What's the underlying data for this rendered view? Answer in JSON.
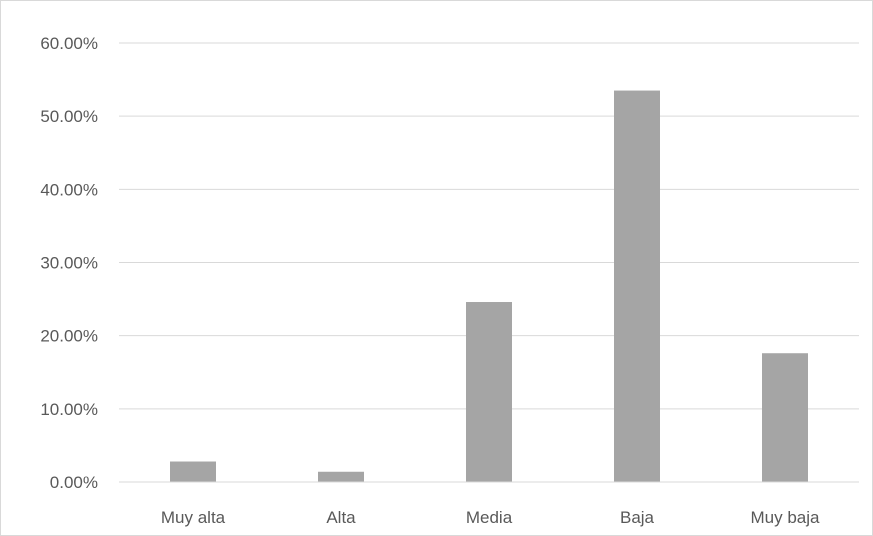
{
  "chart_data": {
    "type": "bar",
    "title": "",
    "xlabel": "",
    "ylabel": "",
    "categories": [
      "Muy alta",
      "Alta",
      "Media",
      "Baja",
      "Muy baja"
    ],
    "values": [
      2.8,
      1.4,
      24.6,
      53.5,
      17.6
    ],
    "value_unit": "%",
    "ylim": [
      0,
      60
    ],
    "yticks": [
      0,
      10,
      20,
      30,
      40,
      50,
      60
    ],
    "ytick_labels": [
      "0.00%",
      "10.00%",
      "20.00%",
      "30.00%",
      "40.00%",
      "50.00%",
      "60.00%"
    ],
    "grid": true,
    "legend": "none",
    "colors": {
      "bar": "#a5a5a5",
      "grid": "#d9d9d9",
      "axis": "#d9d9d9",
      "text": "#595959"
    }
  }
}
